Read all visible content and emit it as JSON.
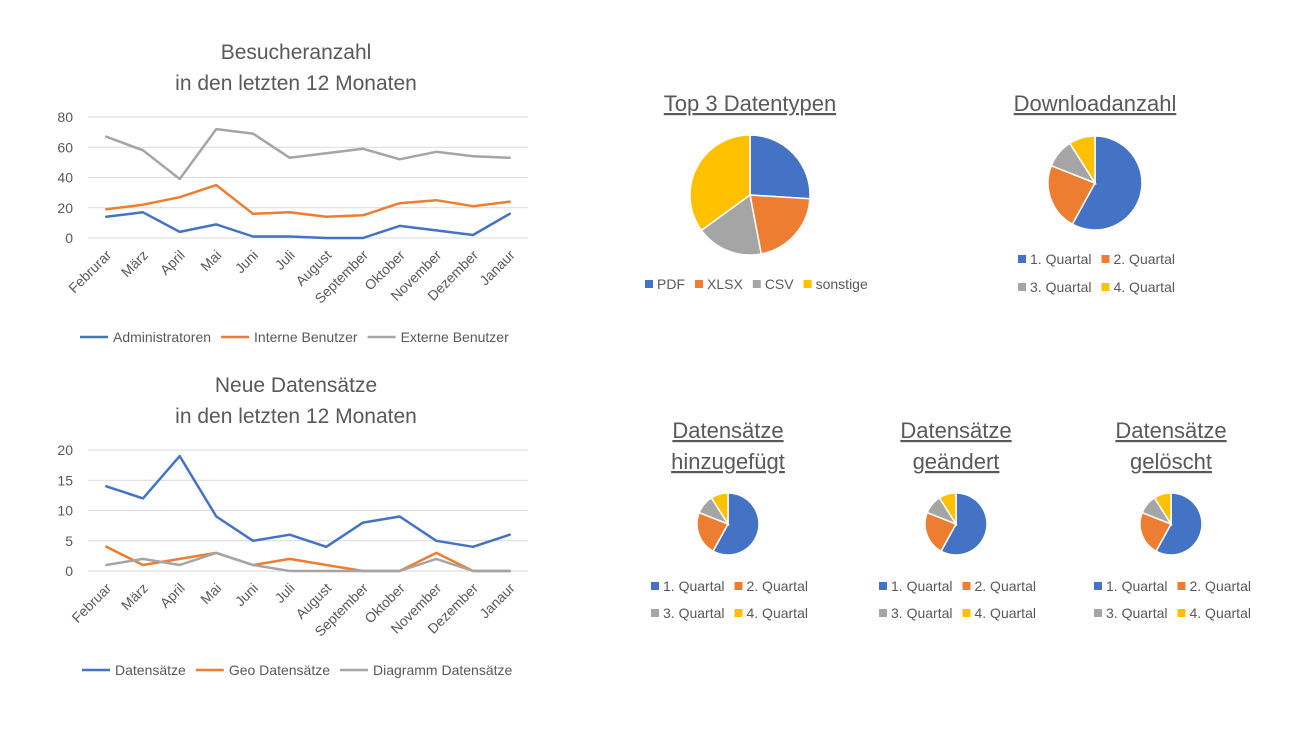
{
  "colors": {
    "blue": "#4472c4",
    "orange": "#ed7d31",
    "gray": "#a5a5a5",
    "yellow": "#ffc000",
    "grid": "#d9d9d9",
    "text": "#595959"
  },
  "chart_data": [
    {
      "id": "visitors",
      "type": "line",
      "title": [
        "Besucheranzahl",
        "in den letzten 12 Monaten"
      ],
      "categories": [
        "Februrar",
        "März",
        "April",
        "Mai",
        "Juni",
        "Juli",
        "August",
        "September",
        "Oktober",
        "November",
        "Dezember",
        "Janaur"
      ],
      "ylim": [
        0,
        80
      ],
      "yticks": [
        0,
        20,
        40,
        60,
        80
      ],
      "grid": true,
      "legend": "bottom",
      "series": [
        {
          "name": "Administratoren",
          "values": [
            14,
            17,
            4,
            9,
            1,
            1,
            0,
            0,
            8,
            5,
            2,
            16
          ]
        },
        {
          "name": "Interne Benutzer",
          "values": [
            19,
            22,
            27,
            35,
            16,
            17,
            14,
            15,
            23,
            25,
            21,
            24
          ]
        },
        {
          "name": "Externe Benutzer",
          "values": [
            67,
            58,
            39,
            72,
            69,
            53,
            56,
            59,
            52,
            57,
            54,
            53
          ]
        }
      ]
    },
    {
      "id": "records",
      "type": "line",
      "title": [
        "Neue Datensätze",
        "in den letzten 12 Monaten"
      ],
      "categories": [
        "Februar",
        "März",
        "April",
        "Mai",
        "Juni",
        "Juli",
        "August",
        "September",
        "Oktober",
        "November",
        "Dezember",
        "Janaur"
      ],
      "ylim": [
        0,
        20
      ],
      "yticks": [
        0,
        5,
        10,
        15,
        20
      ],
      "grid": true,
      "legend": "bottom",
      "series": [
        {
          "name": "Datensätze",
          "values": [
            14,
            12,
            19,
            9,
            5,
            6,
            4,
            8,
            9,
            5,
            4,
            6
          ]
        },
        {
          "name": "Geo Datensätze",
          "values": [
            4,
            1,
            2,
            3,
            1,
            2,
            1,
            0,
            0,
            3,
            0,
            0
          ]
        },
        {
          "name": "Diagramm Datensätze",
          "values": [
            1,
            2,
            1,
            3,
            1,
            0,
            0,
            0,
            0,
            2,
            0,
            0
          ]
        }
      ]
    },
    {
      "id": "datatypes",
      "type": "pie",
      "title": [
        "Top 3 Datentypen"
      ],
      "categories": [
        "PDF",
        "XLSX",
        "CSV",
        "sonstige"
      ],
      "values": [
        26,
        21,
        18,
        35
      ],
      "legend": "bottom"
    },
    {
      "id": "downloads",
      "type": "pie",
      "title": [
        "Downloadanzahl"
      ],
      "categories": [
        "1. Quartal",
        "2. Quartal",
        "3. Quartal",
        "4. Quartal"
      ],
      "values": [
        58,
        23,
        10,
        9
      ],
      "legend": "bottom"
    },
    {
      "id": "added",
      "type": "pie",
      "title": [
        "Datensätze",
        "hinzugefügt"
      ],
      "categories": [
        "1. Quartal",
        "2. Quartal",
        "3. Quartal",
        "4. Quartal"
      ],
      "values": [
        58,
        23,
        10,
        9
      ],
      "legend": "bottom"
    },
    {
      "id": "changed",
      "type": "pie",
      "title": [
        "Datensätze",
        "geändert"
      ],
      "categories": [
        "1. Quartal",
        "2. Quartal",
        "3. Quartal",
        "4. Quartal"
      ],
      "values": [
        58,
        23,
        10,
        9
      ],
      "legend": "bottom"
    },
    {
      "id": "deleted",
      "type": "pie",
      "title": [
        "Datensätze",
        "gelöscht"
      ],
      "categories": [
        "1. Quartal",
        "2. Quartal",
        "3. Quartal",
        "4. Quartal"
      ],
      "values": [
        58,
        23,
        10,
        9
      ],
      "legend": "bottom"
    }
  ]
}
